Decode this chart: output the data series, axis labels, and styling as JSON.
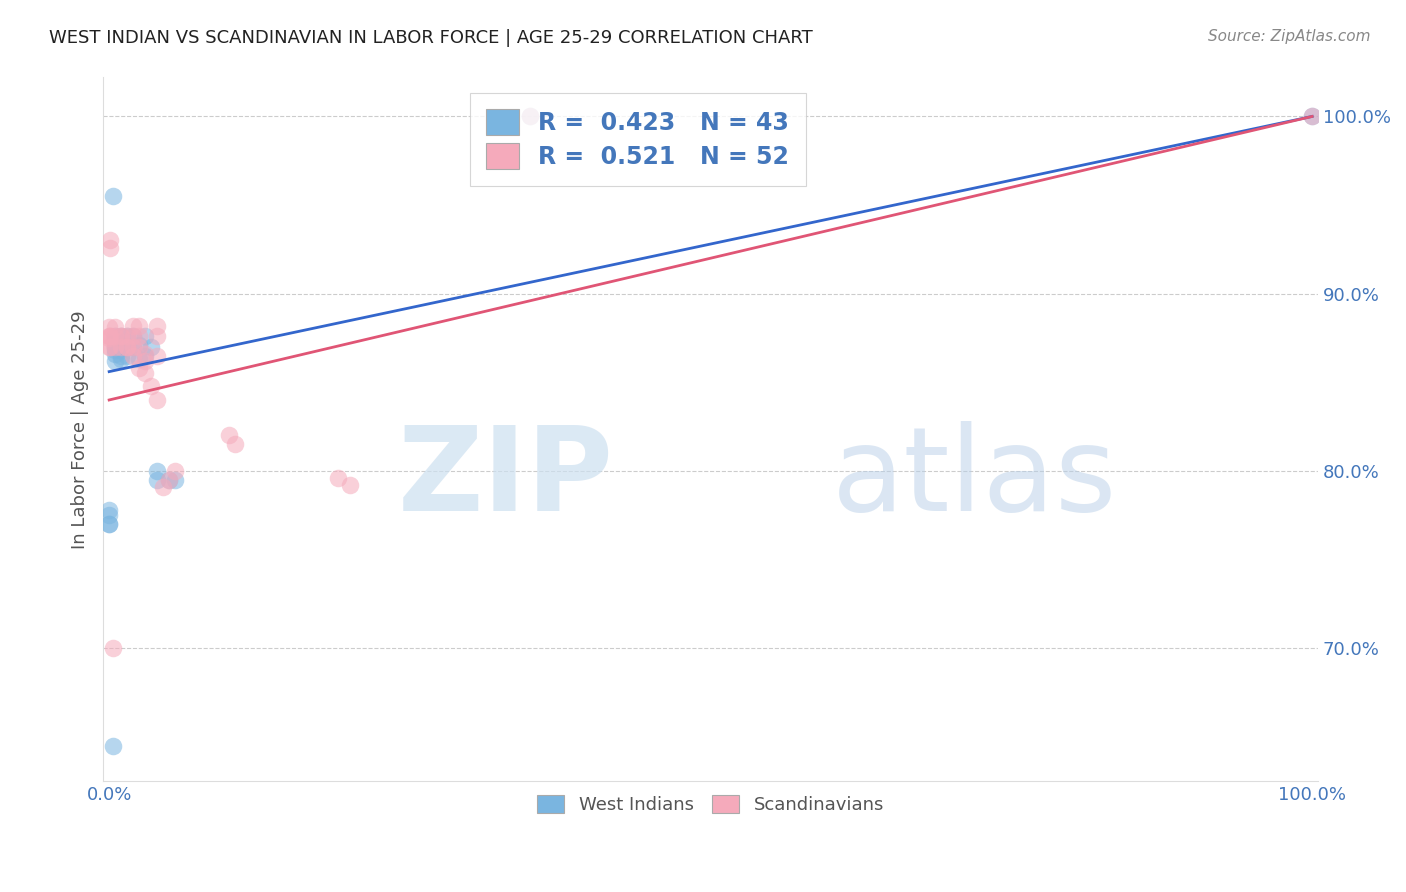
{
  "title": "WEST INDIAN VS SCANDINAVIAN IN LABOR FORCE | AGE 25-29 CORRELATION CHART",
  "source": "Source: ZipAtlas.com",
  "ylabel": "In Labor Force | Age 25-29",
  "ytick_labels": [
    "70.0%",
    "80.0%",
    "90.0%",
    "100.0%"
  ],
  "ytick_values": [
    0.7,
    0.8,
    0.9,
    1.0
  ],
  "xlim": [
    -0.005,
    1.005
  ],
  "ylim": [
    0.625,
    1.022
  ],
  "blue_color": "#7ab5e0",
  "pink_color": "#f5aabb",
  "blue_line_color": "#3366cc",
  "pink_line_color": "#e05575",
  "title_color": "#222222",
  "axis_color": "#4477bb",
  "west_indians_label": "West Indians",
  "scandinavians_label": "Scandinavians",
  "background_color": "#ffffff",
  "grid_color": "#cccccc",
  "blue_x": [
    0.005,
    0.005,
    0.005,
    0.005,
    0.005,
    0.005,
    0.005,
    0.01,
    0.01,
    0.01,
    0.01,
    0.01,
    0.01,
    0.015,
    0.015,
    0.015,
    0.02,
    0.02,
    0.025,
    0.025,
    0.03,
    0.03,
    0.035,
    0.04,
    0.04,
    0.05,
    0.055,
    0.0,
    0.0,
    0.0,
    0.0,
    0.35,
    0.003,
    0.003,
    1.0
  ],
  "blue_y": [
    0.87,
    0.875,
    0.868,
    0.862,
    0.876,
    0.87,
    0.866,
    0.87,
    0.865,
    0.876,
    0.87,
    0.868,
    0.863,
    0.865,
    0.876,
    0.87,
    0.876,
    0.87,
    0.871,
    0.863,
    0.876,
    0.865,
    0.87,
    0.795,
    0.8,
    0.795,
    0.795,
    0.775,
    0.77,
    0.778,
    0.77,
    1.0,
    0.955,
    0.645,
    1.0
  ],
  "pink_x": [
    0.0,
    0.0,
    0.0,
    0.0,
    0.001,
    0.001,
    0.001,
    0.001,
    0.001,
    0.005,
    0.005,
    0.005,
    0.01,
    0.01,
    0.01,
    0.015,
    0.015,
    0.02,
    0.02,
    0.02,
    0.025,
    0.025,
    0.025,
    0.03,
    0.03,
    0.04,
    0.04,
    0.04,
    0.045,
    0.05,
    0.055,
    0.003,
    0.015,
    0.02,
    0.025,
    0.03,
    0.035,
    0.04,
    0.1,
    0.105,
    0.19,
    0.2,
    0.35,
    1.0
  ],
  "pink_y": [
    0.87,
    0.876,
    0.881,
    0.875,
    0.876,
    0.87,
    0.876,
    0.93,
    0.926,
    0.87,
    0.876,
    0.881,
    0.876,
    0.87,
    0.876,
    0.876,
    0.87,
    0.87,
    0.876,
    0.882,
    0.876,
    0.87,
    0.882,
    0.862,
    0.866,
    0.882,
    0.876,
    0.865,
    0.791,
    0.795,
    0.8,
    0.7,
    0.87,
    0.865,
    0.858,
    0.855,
    0.848,
    0.84,
    0.82,
    0.815,
    0.796,
    0.792,
    1.0,
    1.0
  ],
  "blue_line_x0": 0.0,
  "blue_line_y0": 0.856,
  "blue_line_x1": 1.0,
  "blue_line_y1": 1.0,
  "pink_line_x0": 0.0,
  "pink_line_y0": 0.84,
  "pink_line_x1": 1.0,
  "pink_line_y1": 1.0
}
